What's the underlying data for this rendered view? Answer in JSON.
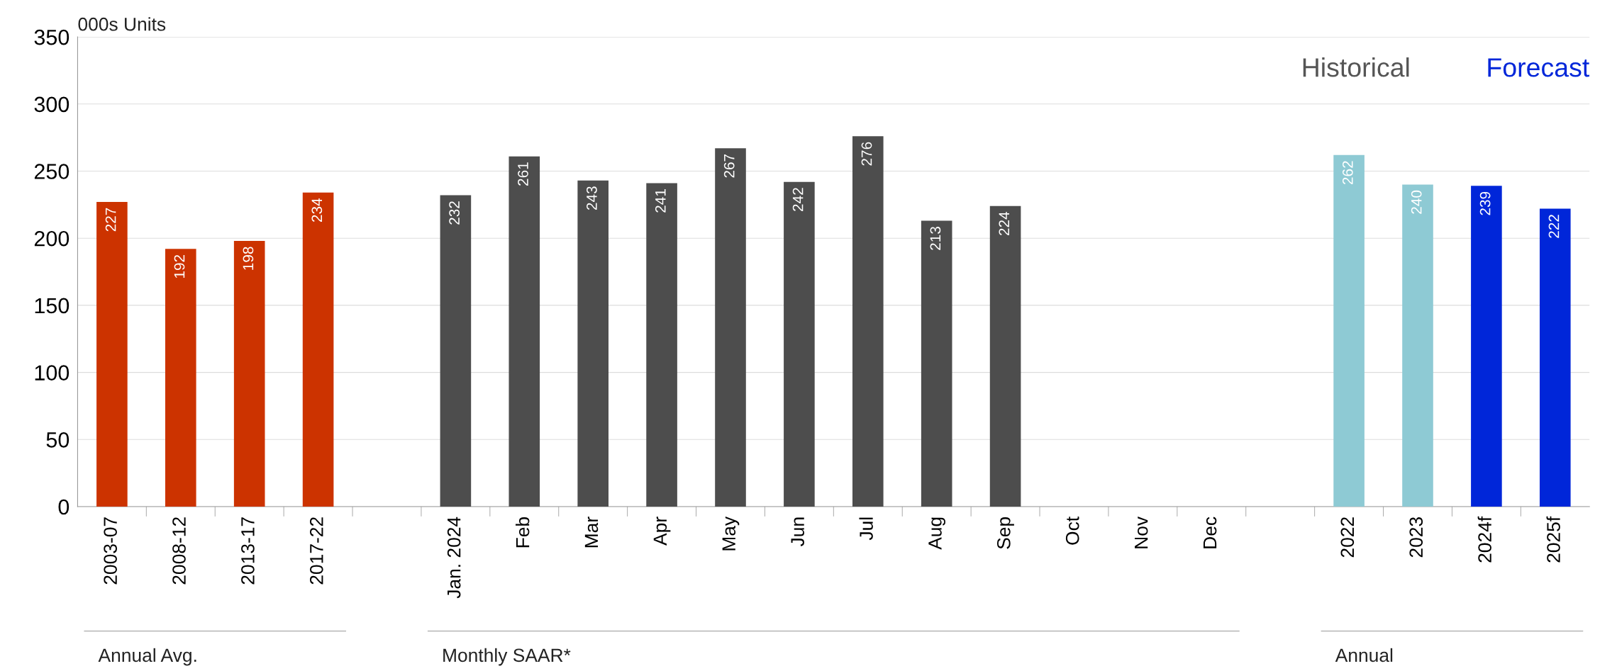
{
  "chart_data": {
    "type": "bar",
    "ylabel": "000s Units",
    "categories": [
      "2003-07",
      "2008-12",
      "2013-17",
      "2017-22",
      null,
      "Jan. 2024",
      "Feb",
      "Mar",
      "Apr",
      "May",
      "Jun",
      "Jul",
      "Aug",
      "Sep",
      "Oct",
      "Nov",
      "Dec",
      null,
      "2022",
      "2023",
      "2024f",
      "2025f"
    ],
    "values": [
      227,
      192,
      198,
      234,
      null,
      232,
      261,
      243,
      241,
      267,
      242,
      276,
      213,
      224,
      null,
      null,
      null,
      null,
      262,
      240,
      239,
      222
    ],
    "colors": [
      "#cc3300",
      "#cc3300",
      "#cc3300",
      "#cc3300",
      null,
      "#4d4d4d",
      "#4d4d4d",
      "#4d4d4d",
      "#4d4d4d",
      "#4d4d4d",
      "#4d4d4d",
      "#4d4d4d",
      "#4d4d4d",
      "#4d4d4d",
      null,
      null,
      null,
      null,
      "#8ecad4",
      "#8ecad4",
      "#0026d9",
      "#0026d9"
    ],
    "ylim": [
      0,
      350
    ],
    "yticks": [
      0,
      50,
      100,
      150,
      200,
      250,
      300,
      350
    ],
    "grid": "y",
    "data_labels": true,
    "annotations": [
      "Historical",
      "Forecast",
      "Annual Avg.",
      "Monthly SAAR*",
      "Annual"
    ]
  }
}
